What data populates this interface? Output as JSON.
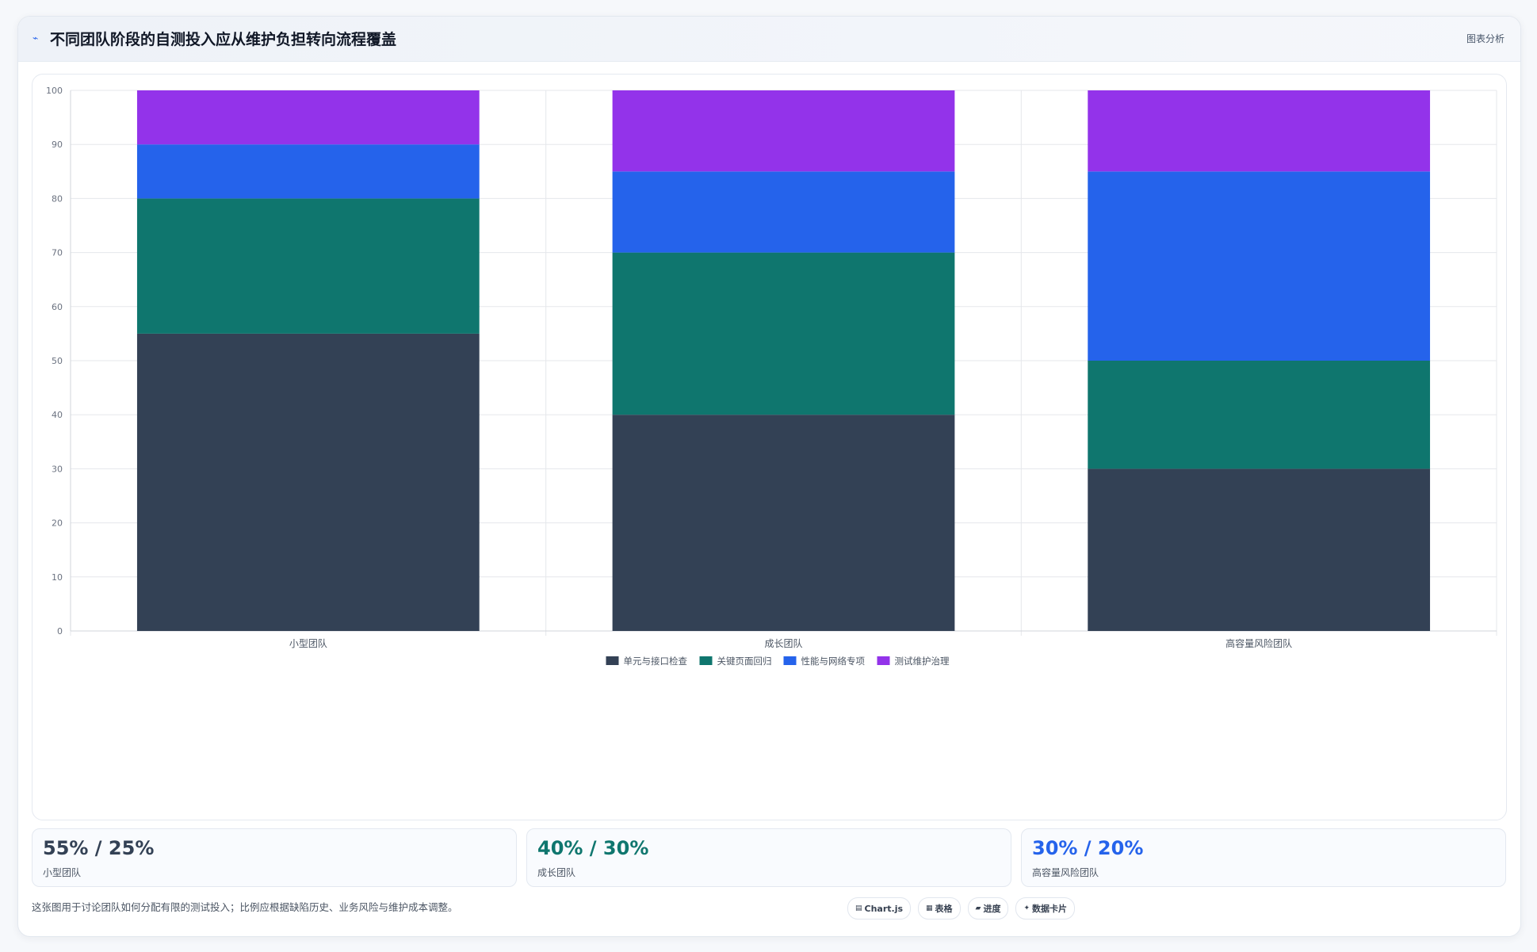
{
  "header": {
    "icon": "line-chart-icon",
    "title": "不同团队阶段的自测投入应从维护负担转向流程覆盖",
    "action_label": "图表分析"
  },
  "chart_data": {
    "type": "bar",
    "stacked": true,
    "title": "",
    "xlabel": "",
    "ylabel": "",
    "categories": [
      "小型团队",
      "成长团队",
      "高容量风险团队"
    ],
    "ylim": [
      0,
      100
    ],
    "yticks": [
      0,
      10,
      20,
      30,
      40,
      50,
      60,
      70,
      80,
      90,
      100
    ],
    "grid": true,
    "legend_position": "bottom",
    "series": [
      {
        "name": "单元与接口检查",
        "color": "#334155",
        "values": [
          55,
          40,
          30
        ]
      },
      {
        "name": "关键页面回归",
        "color": "#0f766e",
        "values": [
          25,
          30,
          20
        ]
      },
      {
        "name": "性能与网络专项",
        "color": "#2563eb",
        "values": [
          10,
          15,
          35
        ]
      },
      {
        "name": "测试维护治理",
        "color": "#9333ea",
        "values": [
          10,
          15,
          15
        ]
      }
    ]
  },
  "stats": [
    {
      "value": "55% / 25%",
      "label": "小型团队",
      "color": "#334155"
    },
    {
      "value": "40% / 30%",
      "label": "成长团队",
      "color": "#0f766e"
    },
    {
      "value": "30% / 20%",
      "label": "高容量风险团队",
      "color": "#2563eb"
    }
  ],
  "footer": {
    "note": "这张图用于讨论团队如何分配有限的测试投入；比例应根据缺陷历史、业务风险与维护成本调整。",
    "chips": [
      {
        "icon": "chart-icon",
        "glyph": "▤",
        "label": "Chart.js"
      },
      {
        "icon": "table-icon",
        "glyph": "▦",
        "label": "表格"
      },
      {
        "icon": "progress-icon",
        "glyph": "▰",
        "label": "进度"
      },
      {
        "icon": "sparkle-icon",
        "glyph": "✦",
        "label": "数据卡片"
      }
    ]
  }
}
